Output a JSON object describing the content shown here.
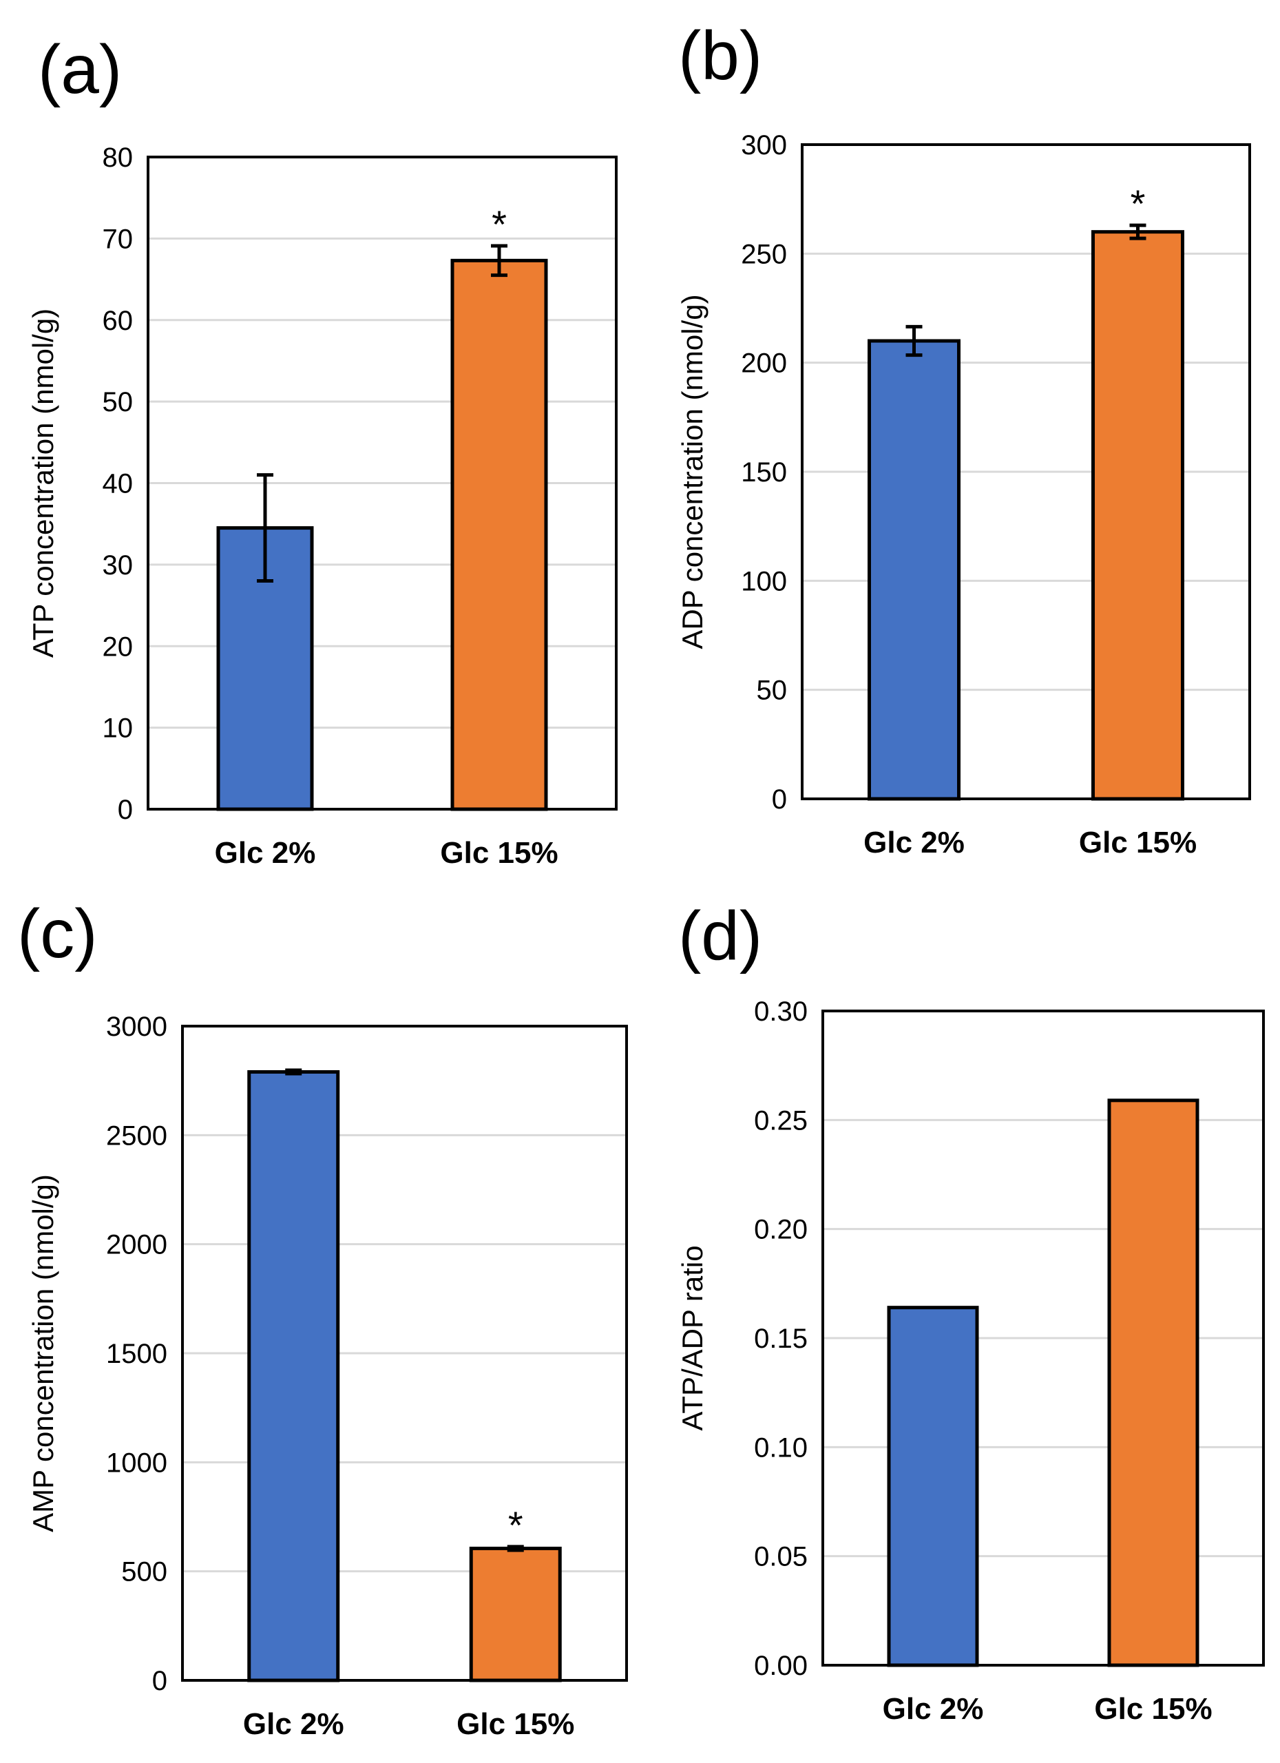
{
  "figure": {
    "background": "#ffffff"
  },
  "colors": {
    "blue": "#4472C4",
    "orange": "#ED7D31",
    "grid": "#D9D9D9",
    "frame": "#000000",
    "text": "#000000"
  },
  "chart_data": [
    {
      "panel_label": "(a)",
      "type": "bar",
      "categories": [
        "Glc 2%",
        "Glc 15%"
      ],
      "values": [
        34.5,
        67.3
      ],
      "errors": [
        6.5,
        1.8
      ],
      "significance": [
        "",
        "*"
      ],
      "ylabel": "ATP concentration (nmol/g)",
      "ylim": [
        0,
        80
      ],
      "yticks": [
        0,
        10,
        20,
        30,
        40,
        50,
        60,
        70,
        80
      ],
      "ytick_labels": [
        "0",
        "10",
        "20",
        "30",
        "40",
        "50",
        "60",
        "70",
        "80"
      ],
      "grid": true,
      "bar_colors": [
        "#4472C4",
        "#ED7D31"
      ]
    },
    {
      "panel_label": "(b)",
      "type": "bar",
      "categories": [
        "Glc 2%",
        "Glc 15%"
      ],
      "values": [
        210,
        260
      ],
      "errors": [
        6.5,
        3
      ],
      "significance": [
        "",
        "*"
      ],
      "ylabel": "ADP concentration (nmol/g)",
      "ylim": [
        0,
        300
      ],
      "yticks": [
        0,
        50,
        100,
        150,
        200,
        250,
        300
      ],
      "ytick_labels": [
        "0",
        "50",
        "100",
        "150",
        "200",
        "250",
        "300"
      ],
      "grid": true,
      "bar_colors": [
        "#4472C4",
        "#ED7D31"
      ]
    },
    {
      "panel_label": "(c)",
      "type": "bar",
      "categories": [
        "Glc 2%",
        "Glc 15%"
      ],
      "values": [
        2790,
        605
      ],
      "errors": [
        8,
        8
      ],
      "significance": [
        "",
        "*"
      ],
      "ylabel": "AMP concentration (nmol/g)",
      "ylim": [
        0,
        3000
      ],
      "yticks": [
        0,
        500,
        1000,
        1500,
        2000,
        2500,
        3000
      ],
      "ytick_labels": [
        "0",
        "500",
        "1000",
        "1500",
        "2000",
        "2500",
        "3000"
      ],
      "grid": true,
      "bar_colors": [
        "#4472C4",
        "#ED7D31"
      ]
    },
    {
      "panel_label": "(d)",
      "type": "bar",
      "categories": [
        "Glc 2%",
        "Glc 15%"
      ],
      "values": [
        0.164,
        0.259
      ],
      "errors": [
        null,
        null
      ],
      "significance": [
        "",
        ""
      ],
      "ylabel": "ATP/ADP ratio",
      "ylim": [
        0,
        0.3
      ],
      "yticks": [
        0,
        0.05,
        0.1,
        0.15,
        0.2,
        0.25,
        0.3
      ],
      "ytick_labels": [
        "0.00",
        "0.05",
        "0.10",
        "0.15",
        "0.20",
        "0.25",
        "0.30"
      ],
      "grid": true,
      "bar_colors": [
        "#4472C4",
        "#ED7D31"
      ]
    }
  ]
}
